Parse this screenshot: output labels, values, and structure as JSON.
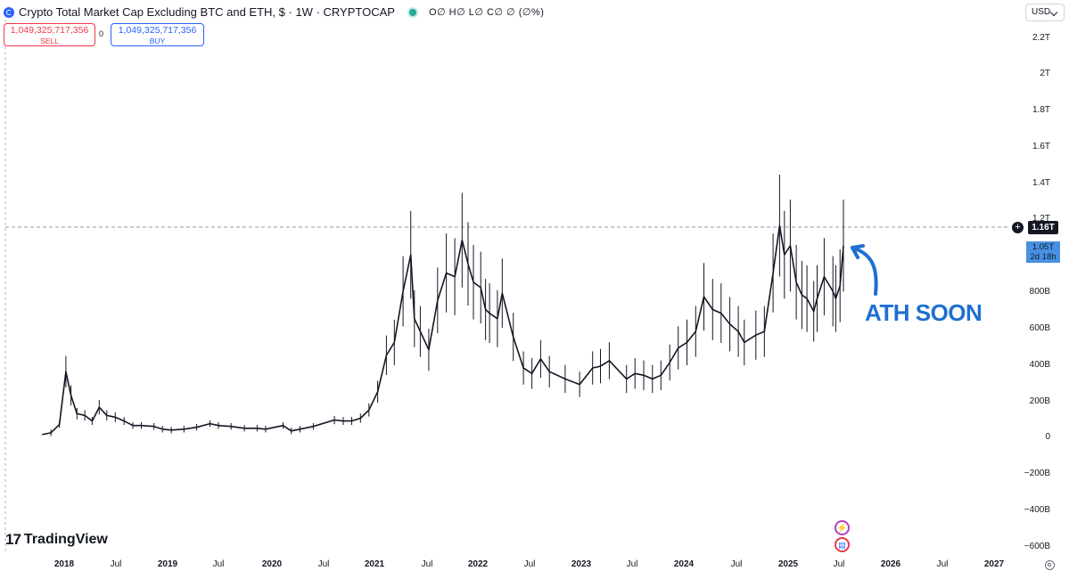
{
  "header": {
    "title": "Crypto Total Market Cap Excluding BTC and ETH, $ · 1W · CRYPTOCAP",
    "ohlc": "O∅ H∅ L∅ C∅ ∅ (∅%)"
  },
  "trade": {
    "sell_price": "1,049,325,717,356",
    "sell_label": "SELL",
    "spread": "0",
    "buy_price": "1,049,325,717,356",
    "buy_label": "BUY"
  },
  "currency": "USD",
  "price_axis": {
    "ticks": [
      "2.2T",
      "2T",
      "1.8T",
      "1.6T",
      "1.4T",
      "1.2T",
      "800B",
      "600B",
      "400B",
      "200B",
      "0",
      "−200B",
      "−400B",
      "−600B"
    ]
  },
  "time_axis": {
    "ticks": [
      "2018",
      "Jul",
      "2019",
      "Jul",
      "2020",
      "Jul",
      "2021",
      "Jul",
      "2022",
      "Jul",
      "2023",
      "Jul",
      "2024",
      "Jul",
      "2025",
      "Jul",
      "2026",
      "Jul",
      "2027"
    ]
  },
  "badges": {
    "ath_level": "1.16T",
    "last_price": "1.05T",
    "countdown": "2d 18h"
  },
  "annotation": "ATH SOON",
  "brand": "TradingView",
  "colors": {
    "candle": "#131722",
    "annotation": "#1f6fd1",
    "ath_line": "#9598a1",
    "last_badge": "#4a90e2"
  },
  "chart_data": {
    "type": "line",
    "title": "Crypto Total Market Cap Excluding BTC and ETH, $ · 1W · CRYPTOCAP",
    "style": "weekly candlesticks (approximated as close-price series)",
    "unit": "USD (B = billion)",
    "ylim": [
      -650,
      2300
    ],
    "ath_level_B": 1160,
    "last_B": 1050,
    "series": [
      {
        "points": [
          [
            "2017-10-15",
            15
          ],
          [
            "2017-11-15",
            25
          ],
          [
            "2017-12-15",
            70
          ],
          [
            "2018-01-07",
            360
          ],
          [
            "2018-01-25",
            230
          ],
          [
            "2018-02-15",
            130
          ],
          [
            "2018-03-15",
            120
          ],
          [
            "2018-04-10",
            90
          ],
          [
            "2018-05-05",
            165
          ],
          [
            "2018-06-01",
            120
          ],
          [
            "2018-07-01",
            110
          ],
          [
            "2018-08-01",
            90
          ],
          [
            "2018-09-01",
            65
          ],
          [
            "2018-10-01",
            65
          ],
          [
            "2018-11-15",
            60
          ],
          [
            "2018-12-15",
            45
          ],
          [
            "2019-01-15",
            40
          ],
          [
            "2019-03-01",
            45
          ],
          [
            "2019-04-15",
            55
          ],
          [
            "2019-06-01",
            75
          ],
          [
            "2019-07-01",
            65
          ],
          [
            "2019-08-15",
            60
          ],
          [
            "2019-10-01",
            50
          ],
          [
            "2019-11-15",
            50
          ],
          [
            "2019-12-15",
            45
          ],
          [
            "2020-02-15",
            65
          ],
          [
            "2020-03-15",
            35
          ],
          [
            "2020-04-15",
            45
          ],
          [
            "2020-06-01",
            60
          ],
          [
            "2020-08-15",
            95
          ],
          [
            "2020-09-15",
            90
          ],
          [
            "2020-10-15",
            90
          ],
          [
            "2020-11-15",
            105
          ],
          [
            "2020-12-15",
            150
          ],
          [
            "2021-01-15",
            250
          ],
          [
            "2021-02-15",
            450
          ],
          [
            "2021-03-15",
            520
          ],
          [
            "2021-04-15",
            800
          ],
          [
            "2021-05-12",
            1000
          ],
          [
            "2021-05-25",
            650
          ],
          [
            "2021-06-15",
            580
          ],
          [
            "2021-07-15",
            480
          ],
          [
            "2021-08-15",
            750
          ],
          [
            "2021-09-15",
            900
          ],
          [
            "2021-10-15",
            880
          ],
          [
            "2021-11-10",
            1080
          ],
          [
            "2021-12-01",
            950
          ],
          [
            "2021-12-20",
            850
          ],
          [
            "2022-01-15",
            820
          ],
          [
            "2022-02-01",
            700
          ],
          [
            "2022-02-15",
            680
          ],
          [
            "2022-03-15",
            650
          ],
          [
            "2022-04-01",
            790
          ],
          [
            "2022-05-10",
            550
          ],
          [
            "2022-06-15",
            380
          ],
          [
            "2022-07-15",
            350
          ],
          [
            "2022-08-15",
            430
          ],
          [
            "2022-09-15",
            360
          ],
          [
            "2022-11-10",
            320
          ],
          [
            "2022-12-31",
            290
          ],
          [
            "2023-02-15",
            380
          ],
          [
            "2023-03-15",
            390
          ],
          [
            "2023-04-15",
            420
          ],
          [
            "2023-06-15",
            320
          ],
          [
            "2023-07-15",
            350
          ],
          [
            "2023-08-15",
            340
          ],
          [
            "2023-09-15",
            320
          ],
          [
            "2023-10-15",
            340
          ],
          [
            "2023-11-15",
            410
          ],
          [
            "2023-12-15",
            490
          ],
          [
            "2024-01-15",
            520
          ],
          [
            "2024-02-15",
            580
          ],
          [
            "2024-03-15",
            770
          ],
          [
            "2024-04-15",
            700
          ],
          [
            "2024-05-15",
            680
          ],
          [
            "2024-06-15",
            620
          ],
          [
            "2024-07-15",
            580
          ],
          [
            "2024-08-05",
            520
          ],
          [
            "2024-09-15",
            560
          ],
          [
            "2024-10-15",
            580
          ],
          [
            "2024-11-15",
            900
          ],
          [
            "2024-12-08",
            1160
          ],
          [
            "2024-12-25",
            1000
          ],
          [
            "2025-01-15",
            1050
          ],
          [
            "2025-02-05",
            850
          ],
          [
            "2025-02-25",
            780
          ],
          [
            "2025-03-15",
            760
          ],
          [
            "2025-04-08",
            690
          ],
          [
            "2025-04-20",
            760
          ],
          [
            "2025-05-15",
            880
          ],
          [
            "2025-06-15",
            800
          ],
          [
            "2025-06-25",
            760
          ],
          [
            "2025-07-10",
            830
          ],
          [
            "2025-07-22",
            1050
          ]
        ]
      }
    ]
  }
}
